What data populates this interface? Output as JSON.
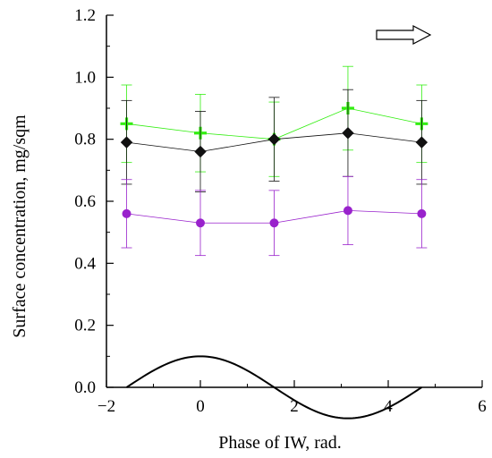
{
  "chart_data": {
    "type": "scatter",
    "xlabel": "Phase of IW, rad.",
    "ylabel": "Surface concentration, mg/sqm",
    "xlim": [
      -2,
      6
    ],
    "ylim": [
      0,
      1.2
    ],
    "x_ticks": [
      "−2",
      "0",
      "2",
      "4",
      "6"
    ],
    "y_ticks": [
      "0.0",
      "0.2",
      "0.4",
      "0.6",
      "0.8",
      "1.0",
      "1.2"
    ],
    "grid": false,
    "legend": "none",
    "x": [
      -1.571,
      0,
      1.571,
      3.142,
      4.712
    ],
    "series": [
      {
        "marker": "plus",
        "color": "#33ee11",
        "values": [
          0.85,
          0.82,
          0.8,
          0.9,
          0.85
        ],
        "errors": [
          0.125,
          0.125,
          0.12,
          0.135,
          0.125
        ]
      },
      {
        "marker": "diamond",
        "color": "#111111",
        "values": [
          0.79,
          0.76,
          0.8,
          0.82,
          0.79
        ],
        "errors": [
          0.135,
          0.13,
          0.135,
          0.14,
          0.135
        ]
      },
      {
        "marker": "circle",
        "color": "#9922cc",
        "values": [
          0.56,
          0.53,
          0.53,
          0.57,
          0.56
        ],
        "errors": [
          0.11,
          0.105,
          0.105,
          0.11,
          0.11
        ]
      }
    ],
    "wave": {
      "shape": "cosine",
      "color": "#000000",
      "x_range": [
        -1.571,
        4.712
      ],
      "amplitude": 0.1,
      "offset": 0.0
    },
    "annotation": {
      "type": "arrow",
      "direction": "right"
    }
  }
}
